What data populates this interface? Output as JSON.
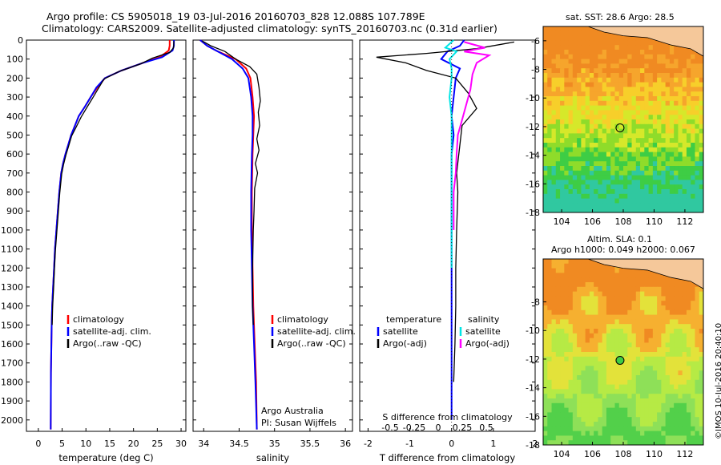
{
  "header": {
    "line1": "Argo profile: CS 5905018_19 03-Jul-2016 20160703_828 12.088S 107.789E",
    "line2": "Climatology: CARS2009. Satellite-adjusted climatology: synTS_20160703.nc (0.31d earlier)"
  },
  "colors": {
    "climatology": "#ff0000",
    "satellite": "#0000ff",
    "argo": "#000000",
    "satellite_salinity": "#00e5e5",
    "argo_salinity": "#ff00ff"
  },
  "chart_data": [
    {
      "type": "line",
      "panel": "temperature",
      "xlabel": "temperature (deg C)",
      "ylabel": "",
      "xlim": [
        -2.5,
        31
      ],
      "ylim": [
        2060,
        0
      ],
      "xticks": [
        "0",
        "5",
        "10",
        "15",
        "20",
        "25",
        "30"
      ],
      "yticks": [
        "0",
        "100",
        "200",
        "300",
        "400",
        "500",
        "600",
        "700",
        "800",
        "900",
        "1000",
        "1100",
        "1200",
        "1300",
        "1400",
        "1500",
        "1600",
        "1700",
        "1800",
        "1900",
        "2000"
      ],
      "legend": [
        "climatology",
        "satellite-adj. clim.",
        "Argo(..raw -QC)"
      ],
      "series": [
        {
          "name": "climatology",
          "color": "#ff0000",
          "x": [
            27.6,
            27.6,
            27.4,
            25.5,
            22.0,
            17.5,
            14.0,
            12.4,
            11.0,
            9.8,
            8.5,
            7.7,
            6.9,
            6.3,
            5.7,
            5.2,
            4.8,
            4.4,
            4.1,
            3.8,
            3.5,
            3.3,
            3.1,
            2.9,
            2.8,
            2.65,
            2.6
          ],
          "y": [
            0,
            30,
            55,
            90,
            120,
            160,
            200,
            250,
            300,
            350,
            400,
            450,
            500,
            550,
            600,
            650,
            700,
            800,
            900,
            1000,
            1100,
            1200,
            1300,
            1400,
            1500,
            1750,
            2050
          ]
        },
        {
          "name": "satellite-adj. clim.",
          "color": "#0000ff",
          "x": [
            28.5,
            28.5,
            28.2,
            26.0,
            22.0,
            17.5,
            14.0,
            12.2,
            11.0,
            9.8,
            8.5,
            7.7,
            6.9,
            6.3,
            5.7,
            5.2,
            4.8,
            4.4,
            4.1,
            3.8,
            3.5,
            3.3,
            3.1,
            2.9,
            2.8,
            2.65,
            2.6
          ],
          "y": [
            0,
            30,
            55,
            90,
            120,
            160,
            200,
            250,
            300,
            350,
            400,
            450,
            500,
            550,
            600,
            650,
            700,
            800,
            900,
            1000,
            1100,
            1200,
            1300,
            1400,
            1500,
            1750,
            2050
          ]
        },
        {
          "name": "Argo(..raw -QC)",
          "color": "#000000",
          "x": [
            28.5,
            28.4,
            27.6,
            24.0,
            21.5,
            17.0,
            13.8,
            12.6,
            11.4,
            10.2,
            9.0,
            8.0,
            7.0,
            6.4,
            5.8,
            5.3,
            4.9,
            4.5,
            4.2,
            3.9,
            3.6,
            3.4,
            3.2,
            3.0,
            2.9
          ],
          "y": [
            5,
            40,
            65,
            95,
            125,
            165,
            205,
            255,
            305,
            355,
            405,
            455,
            505,
            555,
            605,
            655,
            705,
            805,
            905,
            1005,
            1105,
            1205,
            1305,
            1405,
            1500
          ]
        }
      ]
    },
    {
      "type": "line",
      "panel": "salinity",
      "xlabel": "salinity",
      "ylabel": "",
      "xlim": [
        33.85,
        36.1
      ],
      "ylim": [
        2060,
        0
      ],
      "xticks": [
        "34",
        "34.5",
        "35",
        "35.5",
        "36"
      ],
      "legend": [
        "climatology",
        "satellite-adj. clim.",
        "Argo(..raw -QC)"
      ],
      "annotation": [
        "Argo Australia",
        "PI: Susan Wijffels"
      ],
      "series": [
        {
          "name": "climatology",
          "color": "#ff0000",
          "x": [
            33.95,
            34.05,
            34.2,
            34.45,
            34.6,
            34.66,
            34.69,
            34.71,
            34.7,
            34.69,
            34.68,
            34.68,
            34.69,
            34.7,
            34.72,
            34.74,
            34.75
          ],
          "y": [
            0,
            30,
            60,
            100,
            150,
            200,
            300,
            400,
            500,
            600,
            800,
            1000,
            1200,
            1400,
            1600,
            1800,
            2050
          ]
        },
        {
          "name": "satellite-adj. clim.",
          "color": "#0000ff",
          "x": [
            33.95,
            34.05,
            34.2,
            34.4,
            34.55,
            34.63,
            34.67,
            34.69,
            34.69,
            34.68,
            34.67,
            34.67,
            34.68,
            34.69,
            34.71,
            34.73,
            34.75
          ],
          "y": [
            0,
            30,
            60,
            100,
            150,
            200,
            300,
            400,
            500,
            600,
            800,
            1000,
            1200,
            1400,
            1600,
            1800,
            2050
          ]
        },
        {
          "name": "Argo(..raw -QC)",
          "color": "#000000",
          "x": [
            33.98,
            34.1,
            34.3,
            34.45,
            34.65,
            34.75,
            34.78,
            34.8,
            34.77,
            34.79,
            34.75,
            34.78,
            34.73,
            34.76,
            34.72,
            34.71,
            34.7,
            34.69,
            34.69,
            34.7
          ],
          "y": [
            5,
            30,
            60,
            100,
            140,
            180,
            250,
            320,
            380,
            450,
            520,
            580,
            650,
            700,
            780,
            900,
            1000,
            1200,
            1400,
            1500
          ]
        }
      ]
    },
    {
      "type": "line",
      "panel": "difference",
      "xlabel": "T difference from climatology",
      "xlabel_top": "S difference from climatology",
      "xlim": [
        -2.2,
        2.0
      ],
      "ylim": [
        2060,
        0
      ],
      "xticks": [
        "-2",
        "-1",
        "0",
        "1",
        "2"
      ],
      "xticks_top": [
        "-0.5",
        "-0.25",
        "0",
        "0.25",
        "0.5"
      ],
      "legend_left_title": "temperature",
      "legend_right_title": "salinity",
      "legend": [
        "satellite",
        "Argo(-adj)",
        "satellite",
        "Argo(-adj)"
      ],
      "series": [
        {
          "name": "temperature satellite",
          "color": "#0000ff",
          "x": [
            0.3,
            0.2,
            -0.1,
            -0.25,
            0.2,
            0.1,
            0.05,
            0.0,
            0.05,
            0.0,
            0.0,
            0.0,
            0.0,
            0.0,
            0.0
          ],
          "y": [
            0,
            30,
            60,
            100,
            150,
            200,
            300,
            400,
            500,
            600,
            800,
            1000,
            1200,
            1600,
            2000
          ]
        },
        {
          "name": "temperature Argo(-adj)",
          "color": "#000000",
          "x": [
            1.5,
            0.6,
            -0.6,
            -1.8,
            -1.1,
            -0.6,
            0.1,
            0.4,
            0.6,
            0.25,
            0.2,
            0.12,
            0.15,
            0.12,
            0.1,
            0.1,
            0.08,
            0.05
          ],
          "y": [
            10,
            45,
            70,
            90,
            120,
            160,
            200,
            280,
            360,
            450,
            550,
            700,
            800,
            1000,
            1200,
            1400,
            1600,
            1800
          ]
        },
        {
          "name": "salinity satellite",
          "color": "#00e5e5",
          "x": [
            0.05,
            -0.15,
            0.12,
            -0.05,
            0.0,
            0.0,
            -0.05,
            0.0,
            0.0,
            0.0,
            0.0,
            0.0
          ],
          "y": [
            0,
            40,
            60,
            100,
            150,
            200,
            300,
            400,
            600,
            800,
            1000,
            1200
          ]
        },
        {
          "name": "salinity Argo(-adj)",
          "color": "#ff00ff",
          "x": [
            0.3,
            0.8,
            0.3,
            0.9,
            0.6,
            0.5,
            0.45,
            0.35,
            0.25,
            0.15,
            0.12,
            0.1,
            0.05,
            0.05
          ],
          "y": [
            10,
            40,
            60,
            80,
            120,
            180,
            260,
            340,
            420,
            500,
            600,
            700,
            800,
            1000
          ]
        }
      ]
    }
  ],
  "maps": {
    "sst": {
      "title": "sat. SST: 28.6 Argo: 28.5",
      "xticks": [
        "104",
        "106",
        "108",
        "110",
        "112"
      ],
      "yticks": [
        "-6",
        "-8",
        "-10",
        "-12",
        "-14",
        "-16",
        "-18"
      ]
    },
    "sla": {
      "title_line1": "Altim. SLA: 0.1",
      "title_line2": "Argo h1000: 0.049 h2000: 0.067",
      "xticks": [
        "104",
        "106",
        "108",
        "110",
        "112"
      ],
      "yticks": [
        "-8",
        "-10",
        "-12",
        "-14",
        "-16",
        "-18"
      ]
    }
  },
  "credit": "©IMOS 10-Jul-2016 20:40:10"
}
